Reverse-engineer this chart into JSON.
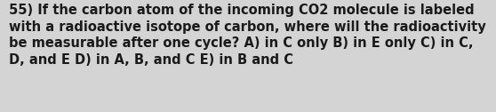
{
  "line1": "55) If the carbon atom of the incoming CO2 molecule is labeled",
  "line2": "with a radioactive isotope of carbon, where will the radioactivity",
  "line3": "be measurable after one cycle? A) in C only B) in E only C) in C,",
  "line4": "D, and E D) in A, B, and C E) in B and C",
  "background_color": "#d4d4d4",
  "text_color": "#1a1a1a",
  "font_size": 10.5,
  "fig_width": 5.58,
  "fig_height": 1.26
}
